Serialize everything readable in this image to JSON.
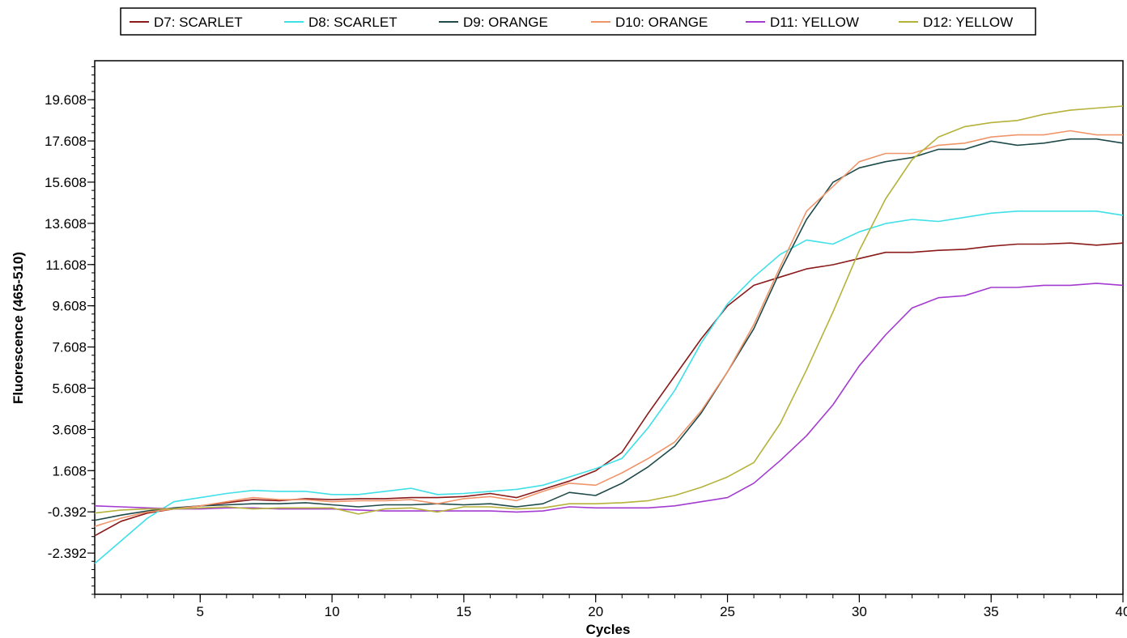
{
  "chart_data": {
    "type": "line",
    "xlabel": "Cycles",
    "ylabel": "Fluorescence (465-510)",
    "xlim": [
      1,
      40
    ],
    "ylim": [
      -4.392,
      21.5
    ],
    "x_ticks": [
      5,
      10,
      15,
      20,
      25,
      30,
      35,
      40
    ],
    "y_ticks": [
      -2.392,
      -0.392,
      1.608,
      3.608,
      5.608,
      7.608,
      9.608,
      11.608,
      13.608,
      15.608,
      17.608,
      19.608
    ],
    "x_tick_labels": [
      "5",
      "10",
      "15",
      "20",
      "25",
      "30",
      "35",
      "40"
    ],
    "y_tick_labels": [
      "-2.392",
      "-0.392",
      "1.608",
      "3.608",
      "5.608",
      "7.608",
      "9.608",
      "11.608",
      "13.608",
      "15.608",
      "17.608",
      "19.608"
    ],
    "legend_position": "top",
    "grid": false,
    "x": [
      1,
      2,
      3,
      4,
      5,
      6,
      7,
      8,
      9,
      10,
      11,
      12,
      13,
      14,
      15,
      16,
      17,
      18,
      19,
      20,
      21,
      22,
      23,
      24,
      25,
      26,
      27,
      28,
      29,
      30,
      31,
      32,
      33,
      34,
      35,
      36,
      37,
      38,
      39,
      40
    ],
    "series": [
      {
        "name": "D7: SCARLET",
        "color": "#8B1A1A",
        "values": [
          -1.55,
          -0.85,
          -0.45,
          -0.25,
          -0.1,
          0.05,
          0.2,
          0.15,
          0.25,
          0.2,
          0.25,
          0.25,
          0.3,
          0.3,
          0.35,
          0.5,
          0.3,
          0.7,
          1.1,
          1.6,
          2.5,
          4.4,
          6.2,
          8.0,
          9.6,
          10.6,
          11.0,
          11.4,
          11.6,
          11.9,
          12.2,
          12.2,
          12.3,
          12.35,
          12.5,
          12.6,
          12.6,
          12.65,
          12.55,
          12.65
        ]
      },
      {
        "name": "D8: SCARLET",
        "color": "#3FE0E8",
        "values": [
          -2.9,
          -1.8,
          -0.7,
          0.1,
          0.3,
          0.5,
          0.65,
          0.6,
          0.6,
          0.45,
          0.45,
          0.6,
          0.75,
          0.45,
          0.5,
          0.6,
          0.7,
          0.9,
          1.3,
          1.7,
          2.2,
          3.7,
          5.5,
          7.8,
          9.7,
          11.0,
          12.1,
          12.8,
          12.6,
          13.2,
          13.6,
          13.8,
          13.7,
          13.9,
          14.1,
          14.2,
          14.2,
          14.2,
          14.2,
          14.0
        ]
      },
      {
        "name": "D9: ORANGE",
        "color": "#1F4A4A",
        "values": [
          -0.8,
          -0.55,
          -0.35,
          -0.2,
          -0.1,
          -0.05,
          0.0,
          0.0,
          0.05,
          -0.05,
          -0.15,
          -0.05,
          -0.05,
          0.0,
          -0.05,
          0.0,
          -0.15,
          0.0,
          0.55,
          0.4,
          1.0,
          1.8,
          2.8,
          4.4,
          6.4,
          8.5,
          11.3,
          13.8,
          15.6,
          16.3,
          16.6,
          16.8,
          17.2,
          17.2,
          17.6,
          17.4,
          17.5,
          17.7,
          17.7,
          17.5
        ]
      },
      {
        "name": "D10: ORANGE",
        "color": "#F0956A",
        "values": [
          -1.1,
          -0.7,
          -0.4,
          -0.25,
          -0.1,
          0.1,
          0.3,
          0.2,
          0.2,
          0.1,
          0.15,
          0.15,
          0.2,
          0.0,
          0.25,
          0.35,
          0.15,
          0.6,
          1.0,
          0.9,
          1.5,
          2.2,
          3.0,
          4.5,
          6.4,
          8.7,
          11.5,
          14.2,
          15.4,
          16.6,
          17.0,
          17.0,
          17.4,
          17.5,
          17.8,
          17.9,
          17.9,
          18.1,
          17.9,
          17.9
        ]
      },
      {
        "name": "D11: YELLOW",
        "color": "#A43BD0",
        "values": [
          -0.1,
          -0.15,
          -0.2,
          -0.25,
          -0.25,
          -0.2,
          -0.2,
          -0.25,
          -0.25,
          -0.25,
          -0.3,
          -0.35,
          -0.35,
          -0.35,
          -0.35,
          -0.35,
          -0.4,
          -0.35,
          -0.15,
          -0.2,
          -0.2,
          -0.2,
          -0.1,
          0.1,
          0.3,
          1.0,
          2.1,
          3.3,
          4.8,
          6.7,
          8.2,
          9.5,
          10.0,
          10.1,
          10.5,
          10.5,
          10.6,
          10.6,
          10.7,
          10.6
        ]
      },
      {
        "name": "D12: YELLOW",
        "color": "#B5B23A",
        "values": [
          -0.45,
          -0.3,
          -0.25,
          -0.25,
          -0.2,
          -0.15,
          -0.25,
          -0.2,
          -0.2,
          -0.2,
          -0.5,
          -0.25,
          -0.2,
          -0.4,
          -0.15,
          -0.15,
          -0.25,
          -0.2,
          0.0,
          0.0,
          0.05,
          0.15,
          0.4,
          0.8,
          1.3,
          2.0,
          3.9,
          6.5,
          9.3,
          12.3,
          14.8,
          16.7,
          17.8,
          18.3,
          18.5,
          18.6,
          18.9,
          19.1,
          19.2,
          19.3
        ]
      }
    ]
  }
}
